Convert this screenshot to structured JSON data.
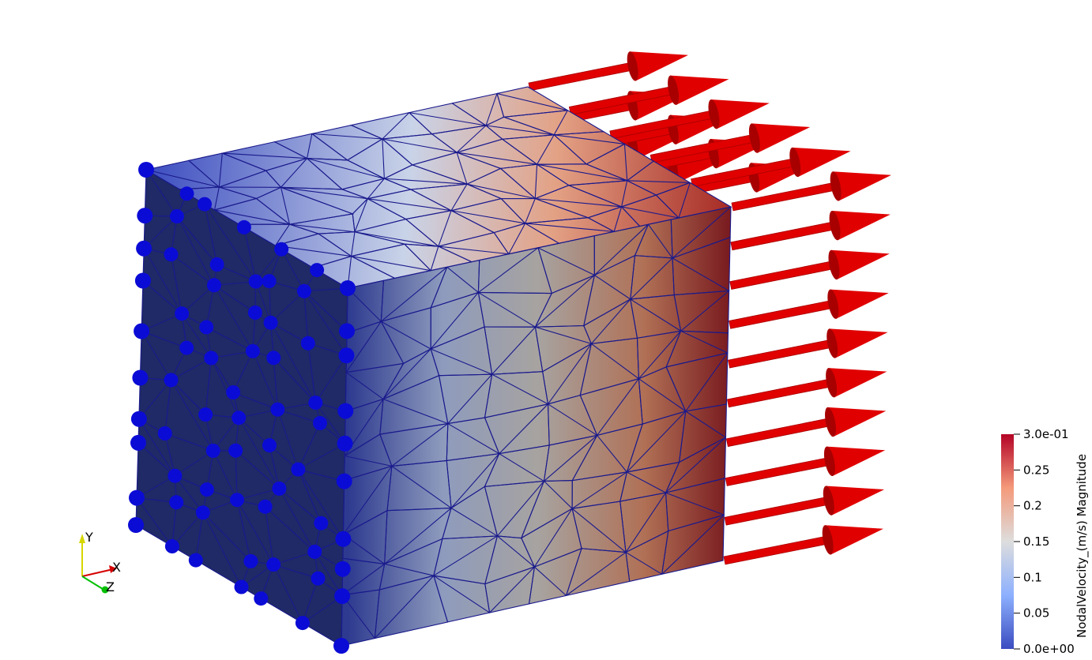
{
  "scene": {
    "mesh_color": "#1a1a8c",
    "node_marker_color": "#0b0bd6",
    "arrow_color": "#e00000",
    "arrow_shade": "#a80000"
  },
  "colorbar": {
    "title": "NodalVelocity_(m/s) Magnitude",
    "min": 0.0,
    "max": 0.3,
    "ticks": [
      {
        "value": 0.3,
        "label": "3.0e-01"
      },
      {
        "value": 0.25,
        "label": "0.25"
      },
      {
        "value": 0.2,
        "label": "0.2"
      },
      {
        "value": 0.15,
        "label": "0.15"
      },
      {
        "value": 0.1,
        "label": "0.1"
      },
      {
        "value": 0.05,
        "label": "0.05"
      },
      {
        "value": 0.0,
        "label": "0.0e+00"
      }
    ],
    "colormap": [
      "#3b4cc0",
      "#8db0fe",
      "#dddddd",
      "#f49a7b",
      "#b40426"
    ]
  },
  "axes": {
    "y_label": "Y",
    "x_label": "X",
    "z_label": "Z",
    "y_color": "#d6d600",
    "x_color": "#d60000",
    "z_color": "#00c000"
  }
}
